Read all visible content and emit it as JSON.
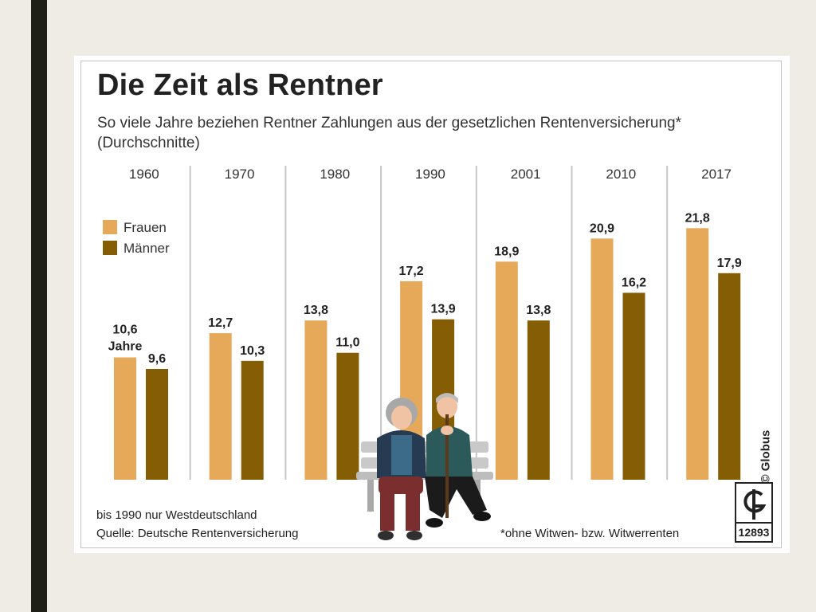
{
  "chart_data": {
    "type": "bar",
    "title": "Die Zeit als Rentner",
    "subtitle": "So viele Jahre beziehen Rentner Zahlungen aus der gesetzlichen Rentenversicherung* (Durchschnitte)",
    "categories": [
      "1960",
      "1970",
      "1980",
      "1990",
      "2001",
      "2010",
      "2017"
    ],
    "series": [
      {
        "name": "Frauen",
        "values": [
          10.6,
          12.7,
          13.8,
          17.2,
          18.9,
          20.9,
          21.8
        ],
        "labels": [
          "10,6",
          "12,7",
          "13,8",
          "17,2",
          "18,9",
          "20,9",
          "21,8"
        ],
        "color": "#e6a95a"
      },
      {
        "name": "Männer",
        "values": [
          9.6,
          10.3,
          11.0,
          13.9,
          13.8,
          16.2,
          17.9
        ],
        "labels": [
          "9,6",
          "10,3",
          "11,0",
          "13,9",
          "13,8",
          "16,2",
          "17,9"
        ],
        "color": "#855d05"
      }
    ],
    "unit_label": "Jahre",
    "ylim": [
      0,
      22
    ],
    "grid": false,
    "legend_position": "top-left"
  },
  "notes": {
    "region": "bis 1990 nur Westdeutschland",
    "source": "Quelle: Deutsche Rentenversicherung",
    "footnote": "*ohne Witwen- bzw. Witwerrenten"
  },
  "branding": {
    "copyright": "© Globus",
    "graphic_number": "12893"
  }
}
